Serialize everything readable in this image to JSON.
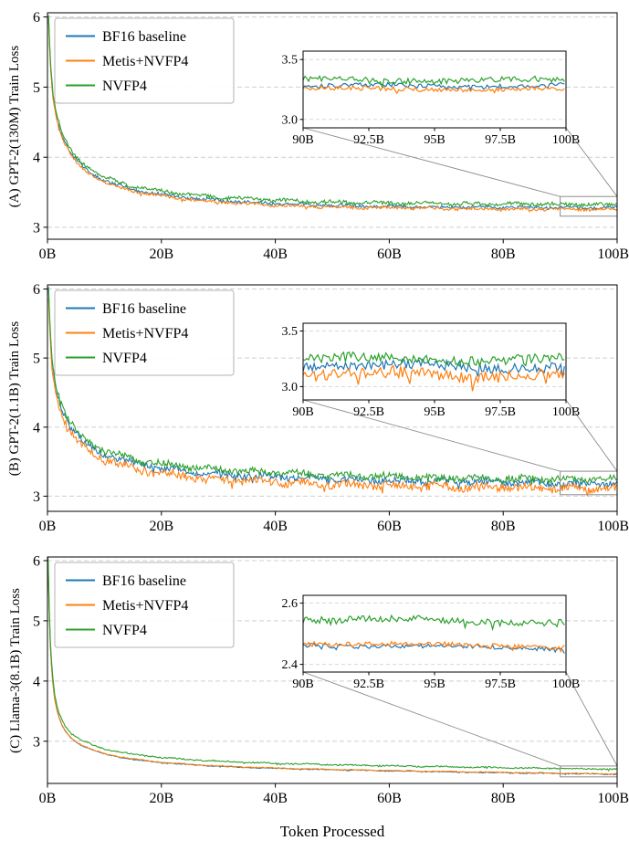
{
  "figure": {
    "xlabel": "Token Processed"
  },
  "chart_data": [
    {
      "id": "A",
      "type": "line",
      "ylabel": "(A) GPT-2(130M) Train Loss",
      "xlim": [
        0,
        100
      ],
      "ylim": [
        2.83,
        6.06
      ],
      "xtick_vals": [
        0,
        20,
        40,
        60,
        80,
        100
      ],
      "xtick_labels": [
        "0B",
        "20B",
        "40B",
        "60B",
        "80B",
        "100B"
      ],
      "ytick_vals": [
        3,
        4,
        5,
        6
      ],
      "ytick_labels": [
        "3",
        "4",
        "5",
        "6"
      ],
      "grid": "dashed-horizontal",
      "legend_position": "upper-left",
      "trend": [
        [
          0.2,
          6.0
        ],
        [
          0.4,
          5.55
        ],
        [
          0.7,
          5.1
        ],
        [
          1,
          4.85
        ],
        [
          1.5,
          4.62
        ],
        [
          2,
          4.45
        ],
        [
          2.5,
          4.32
        ],
        [
          3,
          4.22
        ],
        [
          4,
          4.07
        ],
        [
          5,
          3.96
        ],
        [
          6,
          3.88
        ],
        [
          8,
          3.76
        ],
        [
          10,
          3.67
        ],
        [
          12,
          3.61
        ],
        [
          15,
          3.54
        ],
        [
          20,
          3.47
        ],
        [
          25,
          3.42
        ],
        [
          30,
          3.385
        ],
        [
          35,
          3.36
        ],
        [
          40,
          3.34
        ],
        [
          45,
          3.325
        ],
        [
          50,
          3.312
        ],
        [
          60,
          3.3
        ],
        [
          70,
          3.292
        ],
        [
          80,
          3.286
        ],
        [
          90,
          3.282
        ],
        [
          100,
          3.278
        ]
      ],
      "series": [
        {
          "name": "BF16 baseline",
          "color": "#1f77b4",
          "offset": 0.0,
          "noise": 0.02
        },
        {
          "name": "Metis+NVFP4",
          "color": "#ff7f0e",
          "offset": -0.025,
          "noise": 0.02
        },
        {
          "name": "NVFP4",
          "color": "#2ca02c",
          "offset": 0.048,
          "noise": 0.024
        }
      ],
      "inset": {
        "xlim": [
          90,
          100
        ],
        "ylim": [
          2.93,
          3.57
        ],
        "xtick_vals": [
          90,
          92.5,
          95,
          97.5,
          100
        ],
        "xtick_labels": [
          "90B",
          "92.5B",
          "95B",
          "97.5B",
          "100B"
        ],
        "ytick_vals": [
          3.0,
          3.5
        ],
        "ytick_labels": [
          "3.0",
          "3.5"
        ],
        "indicator_rect": {
          "x": [
            90,
            100
          ],
          "y": [
            3.16,
            3.44
          ]
        }
      }
    },
    {
      "id": "B",
      "type": "line",
      "ylabel": "(B) GPT-2(1.1B) Train Loss",
      "xlim": [
        0,
        100
      ],
      "ylim": [
        2.78,
        6.06
      ],
      "xtick_vals": [
        0,
        20,
        40,
        60,
        80,
        100
      ],
      "xtick_labels": [
        "0B",
        "20B",
        "40B",
        "60B",
        "80B",
        "100B"
      ],
      "ytick_vals": [
        3,
        4,
        5,
        6
      ],
      "ytick_labels": [
        "3",
        "4",
        "5",
        "6"
      ],
      "grid": "dashed-horizontal",
      "legend_position": "upper-left",
      "trend": [
        [
          0.2,
          6.0
        ],
        [
          0.4,
          5.5
        ],
        [
          0.7,
          5.05
        ],
        [
          1,
          4.8
        ],
        [
          1.5,
          4.58
        ],
        [
          2,
          4.4
        ],
        [
          2.5,
          4.27
        ],
        [
          3,
          4.17
        ],
        [
          4,
          4.01
        ],
        [
          5,
          3.9
        ],
        [
          6,
          3.81
        ],
        [
          8,
          3.69
        ],
        [
          10,
          3.61
        ],
        [
          12,
          3.55
        ],
        [
          15,
          3.48
        ],
        [
          20,
          3.41
        ],
        [
          25,
          3.36
        ],
        [
          30,
          3.325
        ],
        [
          35,
          3.3
        ],
        [
          40,
          3.28
        ],
        [
          45,
          3.262
        ],
        [
          50,
          3.248
        ],
        [
          60,
          3.228
        ],
        [
          70,
          3.212
        ],
        [
          80,
          3.198
        ],
        [
          90,
          3.188
        ],
        [
          100,
          3.18
        ]
      ],
      "series": [
        {
          "name": "BF16 baseline",
          "color": "#1f77b4",
          "offset": 0.0,
          "noise": 0.045
        },
        {
          "name": "Metis+NVFP4",
          "color": "#ff7f0e",
          "offset": -0.075,
          "noise": 0.055
        },
        {
          "name": "NVFP4",
          "color": "#2ca02c",
          "offset": 0.06,
          "noise": 0.045
        }
      ],
      "inset": {
        "xlim": [
          90,
          100
        ],
        "ylim": [
          2.88,
          3.57
        ],
        "xtick_vals": [
          90,
          92.5,
          95,
          97.5,
          100
        ],
        "xtick_labels": [
          "90B",
          "92.5B",
          "95B",
          "97.5B",
          "100B"
        ],
        "ytick_vals": [
          3.0,
          3.5
        ],
        "ytick_labels": [
          "3.0",
          "3.5"
        ],
        "indicator_rect": {
          "x": [
            90,
            100
          ],
          "y": [
            3.02,
            3.36
          ]
        }
      }
    },
    {
      "id": "C",
      "type": "line",
      "ylabel": "(C) Llama-3(8.1B) Train Loss",
      "xlim": [
        0,
        100
      ],
      "ylim": [
        2.3,
        6.06
      ],
      "xtick_vals": [
        0,
        20,
        40,
        60,
        80,
        100
      ],
      "xtick_labels": [
        "0B",
        "20B",
        "40B",
        "60B",
        "80B",
        "100B"
      ],
      "ytick_vals": [
        3,
        4,
        5,
        6
      ],
      "ytick_labels": [
        "3",
        "4",
        "5",
        "6"
      ],
      "grid": "dashed-horizontal",
      "legend_position": "upper-left",
      "trend": [
        [
          0.1,
          6.0
        ],
        [
          0.2,
          5.5
        ],
        [
          0.35,
          5.0
        ],
        [
          0.5,
          4.6
        ],
        [
          0.7,
          4.25
        ],
        [
          1,
          3.9
        ],
        [
          1.3,
          3.68
        ],
        [
          1.7,
          3.5
        ],
        [
          2,
          3.4
        ],
        [
          2.5,
          3.28
        ],
        [
          3,
          3.19
        ],
        [
          4,
          3.07
        ],
        [
          5,
          2.99
        ],
        [
          6,
          2.93
        ],
        [
          8,
          2.85
        ],
        [
          10,
          2.79
        ],
        [
          12,
          2.75
        ],
        [
          15,
          2.7
        ],
        [
          20,
          2.645
        ],
        [
          25,
          2.61
        ],
        [
          30,
          2.585
        ],
        [
          35,
          2.565
        ],
        [
          40,
          2.55
        ],
        [
          45,
          2.537
        ],
        [
          50,
          2.527
        ],
        [
          60,
          2.508
        ],
        [
          70,
          2.492
        ],
        [
          80,
          2.478
        ],
        [
          90,
          2.464
        ],
        [
          100,
          2.452
        ]
      ],
      "series": [
        {
          "name": "BF16 baseline",
          "color": "#1f77b4",
          "offset": 0.0,
          "noise": 0.007
        },
        {
          "name": "Metis+NVFP4",
          "color": "#ff7f0e",
          "offset": 0.006,
          "noise": 0.007
        },
        {
          "name": "NVFP4",
          "color": "#2ca02c",
          "offset": 0.085,
          "noise": 0.011
        }
      ],
      "inset": {
        "xlim": [
          90,
          100
        ],
        "ylim": [
          2.375,
          2.625
        ],
        "xtick_vals": [
          90,
          92.5,
          95,
          97.5,
          100
        ],
        "xtick_labels": [
          "90B",
          "92.5B",
          "95B",
          "97.5B",
          "100B"
        ],
        "ytick_vals": [
          2.4,
          2.6
        ],
        "ytick_labels": [
          "2.4",
          "2.6"
        ],
        "indicator_rect": {
          "x": [
            90,
            100
          ],
          "y": [
            2.41,
            2.59
          ]
        }
      }
    }
  ]
}
